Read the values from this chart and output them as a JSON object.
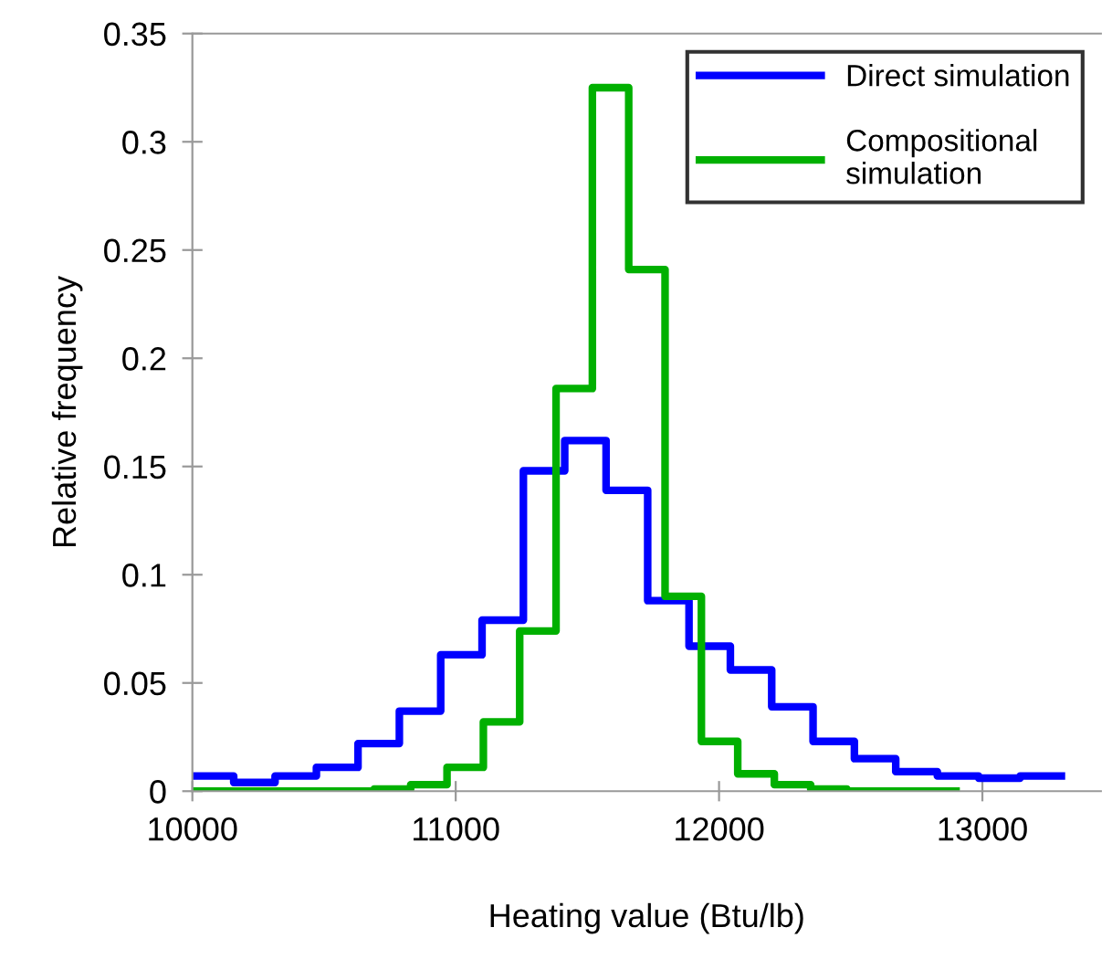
{
  "chart_data": {
    "type": "step",
    "xlabel": "Heating value (Btu/lb)",
    "ylabel": "Relative frequency",
    "xlim": [
      10000,
      13450
    ],
    "ylim": [
      0,
      0.35
    ],
    "xticks": [
      10000,
      11000,
      12000,
      13000
    ],
    "yticks": [
      0,
      0.05,
      0.1,
      0.15,
      0.2,
      0.25,
      0.3,
      0.35
    ],
    "grid": false,
    "legend": "top right",
    "series": [
      {
        "name": "Direct simulation",
        "color": "#0000ff",
        "x": [
          10000,
          10157,
          10314,
          10471,
          10629,
          10786,
          10943,
          11100,
          11257,
          11414,
          11571,
          11729,
          11886,
          12043,
          12200,
          12357,
          12514,
          12671,
          12829,
          12986,
          13143,
          13300
        ],
        "values": [
          0.007,
          0.004,
          0.007,
          0.011,
          0.022,
          0.037,
          0.063,
          0.079,
          0.148,
          0.162,
          0.139,
          0.088,
          0.067,
          0.056,
          0.039,
          0.023,
          0.015,
          0.009,
          0.007,
          0.006,
          0.007,
          0.007
        ]
      },
      {
        "name": "Compositional simulation",
        "color": "#00b000",
        "x": [
          10000,
          10138,
          10276,
          10414,
          10552,
          10690,
          10829,
          10967,
          11105,
          11243,
          11381,
          11519,
          11657,
          11795,
          11933,
          12071,
          12210,
          12348,
          12486,
          12624,
          12762,
          12900
        ],
        "values": [
          0,
          0,
          0,
          0,
          0,
          0.001,
          0.003,
          0.011,
          0.032,
          0.074,
          0.186,
          0.325,
          0.241,
          0.09,
          0.023,
          0.008,
          0.003,
          0.001,
          0,
          0,
          0,
          0
        ]
      }
    ]
  }
}
